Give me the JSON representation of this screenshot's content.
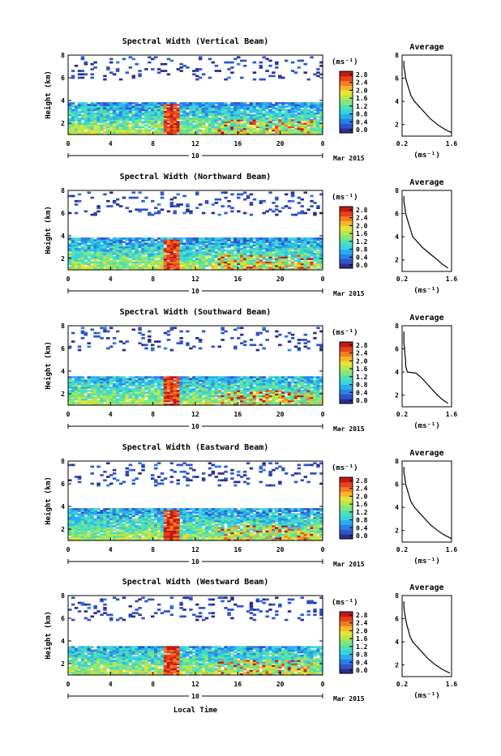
{
  "figure": {
    "xlabel": "Local Time",
    "date_label": "10",
    "month_label": "Mar 2015"
  },
  "colorbar": {
    "unit": "(ms⁻¹)",
    "ticks": [
      "2.8",
      "2.4",
      "2.0",
      "1.6",
      "1.2",
      "0.8",
      "0.4",
      "0.0"
    ],
    "colors": [
      "#2b2f8a",
      "#2f55c9",
      "#2e7fe6",
      "#27aef0",
      "#38d3e0",
      "#4fe0b0",
      "#7fe680",
      "#b5e74f",
      "#e5e436",
      "#f6b62a",
      "#f47d22",
      "#e8421c",
      "#c21818"
    ]
  },
  "avg": {
    "title": "Average",
    "xticks": [
      "0.2",
      "1.6"
    ],
    "xunit": "(ms⁻¹)",
    "yticks": [
      "2",
      "4",
      "6",
      "8"
    ]
  },
  "chart_data": [
    {
      "type": "heatmap",
      "title": "Spectral Width (Vertical Beam)",
      "ylabel": "Height (km)",
      "xticks": [
        "0",
        "4",
        "8",
        "12",
        "16",
        "20",
        "0"
      ],
      "yticks": [
        "2",
        "4",
        "6",
        "8"
      ],
      "xlim": [
        0,
        24
      ],
      "ylim": [
        1,
        8
      ],
      "zlim": [
        0,
        2.8
      ],
      "average_profile": {
        "height_km": [
          1.3,
          1.6,
          2.0,
          2.5,
          3.0,
          3.5,
          4.0,
          4.5,
          5.0,
          5.5,
          6.0,
          6.5,
          7.0,
          7.5
        ],
        "width_ms": [
          1.6,
          1.4,
          1.2,
          1.0,
          0.85,
          0.7,
          0.55,
          0.45,
          0.4,
          0.35,
          0.3,
          0.28,
          0.25,
          0.25
        ]
      }
    },
    {
      "type": "heatmap",
      "title": "Spectral Width (Northward Beam)",
      "ylabel": "Height (km)",
      "xticks": [
        "0",
        "4",
        "8",
        "12",
        "16",
        "20",
        "0"
      ],
      "yticks": [
        "2",
        "4",
        "6",
        "8"
      ],
      "xlim": [
        0,
        24
      ],
      "ylim": [
        1,
        8
      ],
      "zlim": [
        0,
        2.8
      ],
      "average_profile": {
        "height_km": [
          1.3,
          1.6,
          2.0,
          2.5,
          3.0,
          3.5,
          4.0,
          4.5,
          5.0,
          5.5,
          6.0,
          6.5,
          7.0,
          7.5
        ],
        "width_ms": [
          1.5,
          1.35,
          1.2,
          1.0,
          0.8,
          0.65,
          0.5,
          0.45,
          0.4,
          0.35,
          0.3,
          0.28,
          0.25,
          0.25
        ]
      }
    },
    {
      "type": "heatmap",
      "title": "Spectral Width (Southward Beam)",
      "ylabel": "Height (km)",
      "xticks": [
        "0",
        "4",
        "8",
        "12",
        "16",
        "20",
        "0"
      ],
      "yticks": [
        "2",
        "4",
        "6",
        "8"
      ],
      "xlim": [
        0,
        24
      ],
      "ylim": [
        1,
        8
      ],
      "zlim": [
        0,
        2.8
      ],
      "average_profile": {
        "height_km": [
          1.3,
          1.6,
          2.0,
          2.5,
          3.0,
          3.5,
          3.9,
          4.0,
          4.5,
          5.0,
          5.5,
          6.0,
          6.5,
          7.0,
          7.5
        ],
        "width_ms": [
          1.5,
          1.35,
          1.2,
          1.05,
          0.9,
          0.75,
          0.6,
          0.35,
          0.3,
          0.3,
          0.28,
          0.27,
          0.25,
          0.25,
          0.25
        ]
      }
    },
    {
      "type": "heatmap",
      "title": "Spectral Width (Eastward Beam)",
      "ylabel": "Height (km)",
      "xticks": [
        "0",
        "4",
        "8",
        "12",
        "16",
        "20",
        "0"
      ],
      "yticks": [
        "2",
        "4",
        "6",
        "8"
      ],
      "xlim": [
        0,
        24
      ],
      "ylim": [
        1,
        8
      ],
      "zlim": [
        0,
        2.8
      ],
      "average_profile": {
        "height_km": [
          1.3,
          1.6,
          2.0,
          2.5,
          3.0,
          3.5,
          4.0,
          4.5,
          5.0,
          5.5,
          6.0,
          6.5,
          7.0,
          7.5
        ],
        "width_ms": [
          1.6,
          1.4,
          1.2,
          1.0,
          0.85,
          0.7,
          0.55,
          0.45,
          0.4,
          0.35,
          0.3,
          0.28,
          0.25,
          0.25
        ]
      }
    },
    {
      "type": "heatmap",
      "title": "Spectral Width (Westward Beam)",
      "ylabel": "Height (km)",
      "xticks": [
        "0",
        "4",
        "8",
        "12",
        "16",
        "20",
        "0"
      ],
      "yticks": [
        "2",
        "4",
        "6",
        "8"
      ],
      "xlim": [
        0,
        24
      ],
      "ylim": [
        1,
        8
      ],
      "zlim": [
        0,
        2.8
      ],
      "average_profile": {
        "height_km": [
          1.3,
          1.6,
          2.0,
          2.5,
          3.0,
          3.5,
          4.0,
          4.5,
          5.0,
          5.5,
          6.0,
          6.5,
          7.0,
          7.5
        ],
        "width_ms": [
          1.55,
          1.35,
          1.15,
          0.95,
          0.8,
          0.65,
          0.5,
          0.42,
          0.38,
          0.33,
          0.3,
          0.27,
          0.25,
          0.25
        ]
      }
    }
  ]
}
